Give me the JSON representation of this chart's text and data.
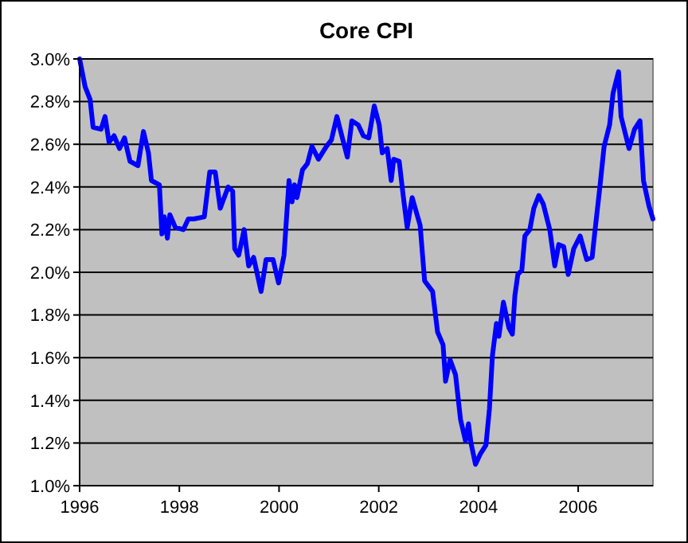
{
  "chart_data": {
    "type": "line",
    "title": "Core CPI",
    "x": [
      1996.0,
      1996.11,
      1996.21,
      1996.27,
      1996.43,
      1996.51,
      1996.59,
      1996.69,
      1996.8,
      1996.9,
      1996.96,
      1997.01,
      1997.17,
      1997.28,
      1997.38,
      1997.44,
      1997.6,
      1997.65,
      1997.7,
      1997.76,
      1997.81,
      1997.92,
      1998.08,
      1998.18,
      1998.29,
      1998.5,
      1998.61,
      1998.72,
      1998.82,
      1998.98,
      1999.07,
      1999.11,
      1999.19,
      1999.3,
      1999.39,
      1999.49,
      1999.64,
      1999.74,
      1999.88,
      1999.99,
      2000.1,
      2000.2,
      2000.26,
      2000.31,
      2000.36,
      2000.47,
      2000.57,
      2000.66,
      2000.79,
      2000.95,
      2001.05,
      2001.16,
      2001.27,
      2001.37,
      2001.46,
      2001.59,
      2001.69,
      2001.8,
      2001.91,
      2002.01,
      2002.07,
      2002.17,
      2002.25,
      2002.3,
      2002.41,
      2002.49,
      2002.57,
      2002.67,
      2002.83,
      2002.92,
      2003.08,
      2003.18,
      2003.29,
      2003.34,
      2003.43,
      2003.54,
      2003.64,
      2003.74,
      2003.8,
      2003.85,
      2003.94,
      2004.04,
      2004.15,
      2004.22,
      2004.28,
      2004.36,
      2004.41,
      2004.5,
      2004.61,
      2004.68,
      2004.73,
      2004.79,
      2004.87,
      2004.93,
      2005.03,
      2005.11,
      2005.21,
      2005.3,
      2005.43,
      2005.53,
      2005.61,
      2005.71,
      2005.8,
      2005.91,
      2006.04,
      2006.17,
      2006.28,
      2006.33,
      2006.44,
      2006.52,
      2006.63,
      2006.7,
      2006.81,
      2006.86,
      2007.02,
      2007.13,
      2007.24,
      2007.31,
      2007.42,
      2007.5
    ],
    "series": [
      {
        "color": "#0000ff",
        "values": [
          3.0,
          2.87,
          2.81,
          2.68,
          2.67,
          2.73,
          2.61,
          2.64,
          2.58,
          2.63,
          2.57,
          2.52,
          2.5,
          2.66,
          2.56,
          2.43,
          2.41,
          2.18,
          2.26,
          2.16,
          2.27,
          2.21,
          2.2,
          2.25,
          2.25,
          2.26,
          2.47,
          2.47,
          2.3,
          2.4,
          2.38,
          2.11,
          2.08,
          2.2,
          2.03,
          2.07,
          1.91,
          2.06,
          2.06,
          1.95,
          2.08,
          2.43,
          2.33,
          2.41,
          2.35,
          2.48,
          2.51,
          2.59,
          2.53,
          2.59,
          2.62,
          2.73,
          2.63,
          2.54,
          2.71,
          2.69,
          2.64,
          2.63,
          2.78,
          2.69,
          2.56,
          2.58,
          2.43,
          2.53,
          2.52,
          2.36,
          2.21,
          2.35,
          2.22,
          1.96,
          1.91,
          1.72,
          1.66,
          1.49,
          1.59,
          1.52,
          1.31,
          1.21,
          1.29,
          1.2,
          1.1,
          1.15,
          1.19,
          1.36,
          1.61,
          1.76,
          1.7,
          1.86,
          1.74,
          1.71,
          1.89,
          1.99,
          2.01,
          2.17,
          2.2,
          2.3,
          2.36,
          2.32,
          2.2,
          2.03,
          2.13,
          2.12,
          1.99,
          2.11,
          2.17,
          2.06,
          2.07,
          2.18,
          2.41,
          2.59,
          2.69,
          2.84,
          2.94,
          2.73,
          2.58,
          2.67,
          2.71,
          2.43,
          2.31,
          2.25
        ]
      }
    ],
    "xlim": [
      1996,
      2007.5
    ],
    "xticks": [
      1996,
      1998,
      2000,
      2002,
      2004,
      2006
    ],
    "ylim": [
      1.0,
      3.0
    ],
    "yticks": [
      {
        "value": 1.0,
        "label": "1.0%"
      },
      {
        "value": 1.2,
        "label": "1.2%"
      },
      {
        "value": 1.4,
        "label": "1.4%"
      },
      {
        "value": 1.6,
        "label": "1.6%"
      },
      {
        "value": 1.8,
        "label": "1.8%"
      },
      {
        "value": 2.0,
        "label": "2.0%"
      },
      {
        "value": 2.2,
        "label": "2.2%"
      },
      {
        "value": 2.4,
        "label": "2.4%"
      },
      {
        "value": 2.6,
        "label": "2.6%"
      },
      {
        "value": 2.8,
        "label": "2.8%"
      },
      {
        "value": 3.0,
        "label": "3.0%"
      }
    ],
    "grid": "y",
    "marker": "none",
    "line_style": "solid"
  }
}
